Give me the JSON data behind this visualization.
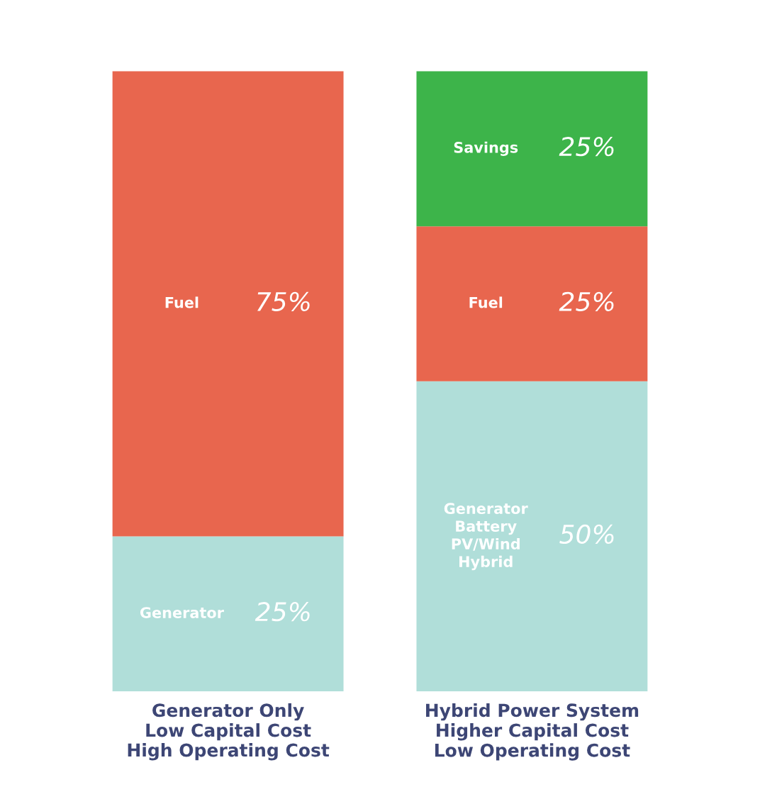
{
  "chart_data": {
    "type": "bar",
    "stacked": true,
    "categories": [
      "Generator Only\nLow Capital Cost\nHigh Operating Cost",
      "Hybrid Power System\nHigher Capital Cost\nLow Operating Cost"
    ],
    "series": [
      {
        "name": "Generator",
        "color": "#b0ded9",
        "values": [
          25,
          null
        ],
        "value_labels": [
          "25%",
          null
        ]
      },
      {
        "name": "Generator\nBattery\nPV/Wind\nHybrid",
        "color": "#b0ded9",
        "values": [
          null,
          50
        ],
        "value_labels": [
          null,
          "50%"
        ]
      },
      {
        "name": "Fuel",
        "color": "#e8664e",
        "values": [
          75,
          25
        ],
        "value_labels": [
          "75%",
          "25%"
        ]
      },
      {
        "name": "Savings",
        "color": "#3db44a",
        "values": [
          null,
          25
        ],
        "value_labels": [
          null,
          "25%"
        ]
      }
    ],
    "grid": false,
    "legend": false
  }
}
